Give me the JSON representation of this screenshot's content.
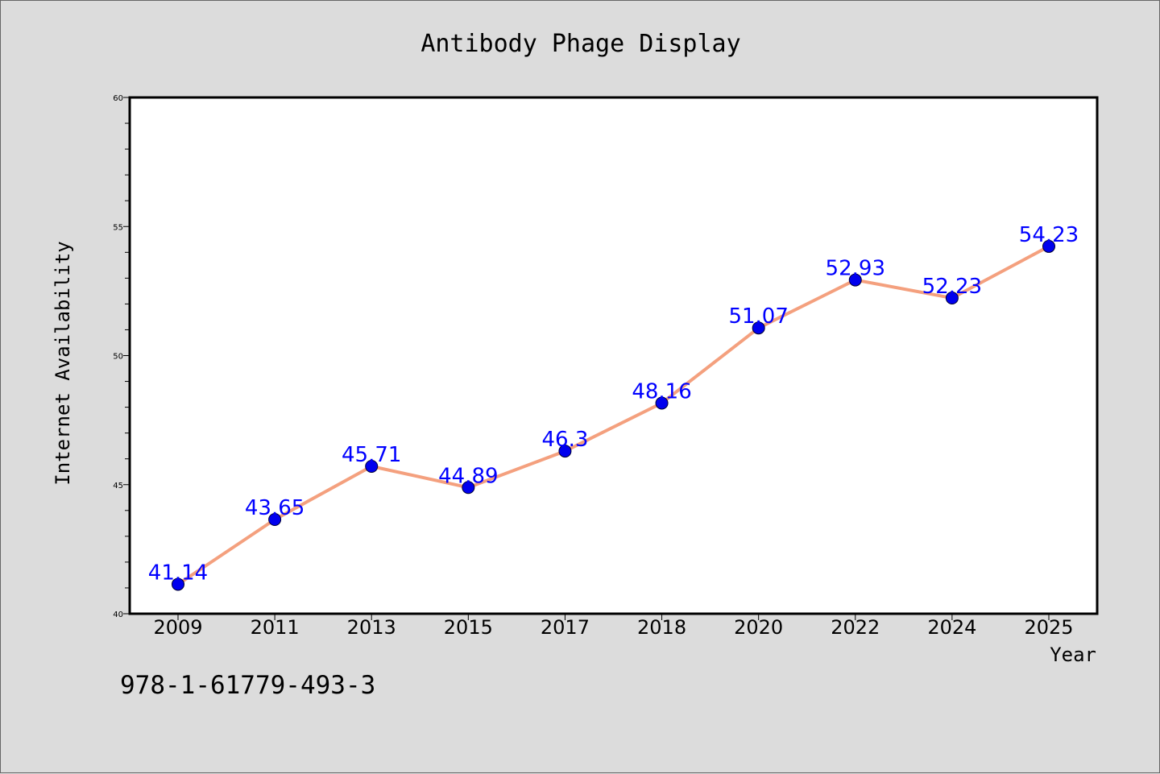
{
  "chart_data": {
    "type": "line",
    "title": "Antibody Phage Display",
    "xlabel": "Year",
    "ylabel": "Internet Availability",
    "categories": [
      "2009",
      "2011",
      "2013",
      "2015",
      "2017",
      "2018",
      "2020",
      "2022",
      "2024",
      "2025"
    ],
    "series": [
      {
        "values": [
          41.14,
          43.65,
          45.71,
          44.89,
          46.3,
          48.16,
          51.07,
          52.93,
          52.23,
          54.23
        ],
        "labels": [
          "41.14",
          "43.65",
          "45.71",
          "44.89",
          "46.3",
          "48.16",
          "51.07",
          "52.93",
          "52.23",
          "54.23"
        ]
      }
    ],
    "ylim": [
      40,
      60
    ],
    "yticks": [
      "40",
      "45",
      "50",
      "55",
      "60"
    ],
    "grid": false,
    "legend": "none",
    "colors": {
      "line": "#f4a07e",
      "marker": "#0000ee",
      "label": "#0000ff",
      "background": "#dcdcdc",
      "plot": "#ffffff"
    }
  },
  "footnote": "978-1-61779-493-3"
}
